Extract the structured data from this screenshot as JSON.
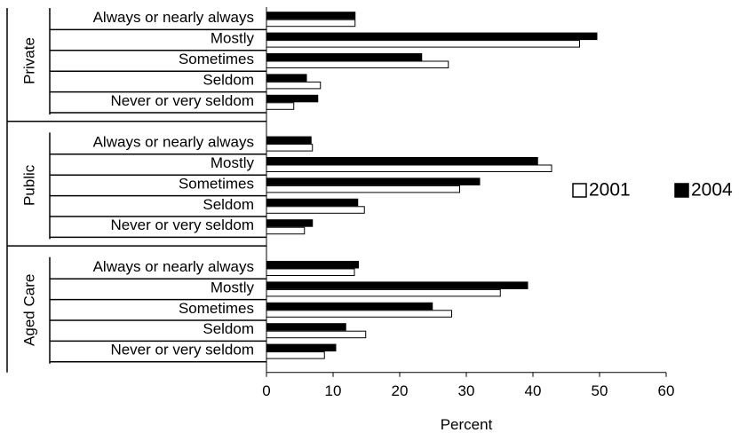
{
  "chart_data": {
    "type": "bar",
    "orientation": "horizontal",
    "title": "",
    "xlabel": "Percent",
    "ylabel": "",
    "xlim": [
      0,
      60
    ],
    "xticks": [
      0,
      10,
      20,
      30,
      40,
      50,
      60
    ],
    "grid": false,
    "legend_position": "right",
    "categories": [
      "Always or nearly always",
      "Mostly",
      "Sometimes",
      "Seldom",
      "Never or very seldom"
    ],
    "groups": [
      {
        "name": "Private",
        "series": [
          {
            "name": "2001",
            "values": [
              13.3,
              47.0,
              27.3,
              8.1,
              4.1
            ]
          },
          {
            "name": "2004",
            "values": [
              13.3,
              49.6,
              23.3,
              6.0,
              7.7
            ]
          }
        ]
      },
      {
        "name": "Public",
        "series": [
          {
            "name": "2001",
            "values": [
              6.9,
              42.8,
              29.0,
              14.7,
              5.7
            ]
          },
          {
            "name": "2004",
            "values": [
              6.7,
              40.7,
              32.0,
              13.7,
              6.9
            ]
          }
        ]
      },
      {
        "name": "Aged Care",
        "series": [
          {
            "name": "2001",
            "values": [
              13.2,
              35.1,
              27.8,
              14.9,
              8.7
            ]
          },
          {
            "name": "2004",
            "values": [
              13.8,
              39.2,
              24.9,
              11.9,
              10.4
            ]
          }
        ]
      }
    ],
    "legend": [
      {
        "name": "2001",
        "color": "#ffffff"
      },
      {
        "name": "2004",
        "color": "#000000"
      }
    ]
  }
}
